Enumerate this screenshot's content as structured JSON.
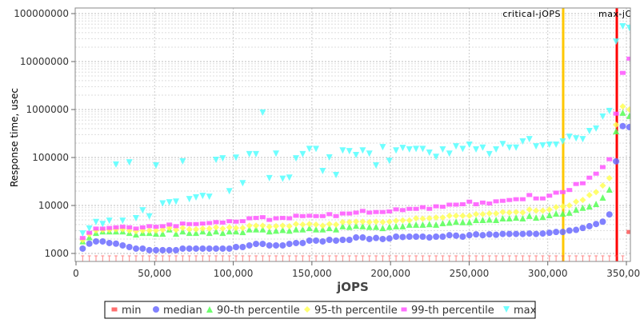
{
  "chart_data": {
    "type": "scatter",
    "title": "",
    "xlabel": "jOPS",
    "ylabel": "Response time, usec",
    "yscale": "log",
    "xlim": [
      0,
      352000
    ],
    "ylim": [
      1000,
      100000000
    ],
    "grid": true,
    "legend_position": "bottom",
    "x_ticks": [
      "0",
      "50,000",
      "100,000",
      "150,000",
      "200,000",
      "250,000",
      "300,000",
      "350,000"
    ],
    "x_tick_values": [
      0,
      50000,
      100000,
      150000,
      200000,
      250000,
      300000,
      350000
    ],
    "y_ticks": [
      "1000",
      "10000",
      "100000",
      "1000000",
      "10000000",
      "100000000"
    ],
    "y_tick_values": [
      1000,
      10000,
      100000,
      1000000,
      10000000,
      100000000
    ],
    "x_start": 4240,
    "x_step": 4240,
    "markers": [
      {
        "label": "critical-jOPS",
        "value": 309800,
        "color": "#ffc800"
      },
      {
        "label": "max-jOPS",
        "value": 343900,
        "color": "#ff0000"
      }
    ],
    "series": [
      {
        "name": "min",
        "color": "#ff5555",
        "shape": "square",
        "values": [
          900,
          900,
          900,
          900,
          900,
          900,
          900,
          900,
          900,
          900,
          900,
          900,
          900,
          900,
          900,
          900,
          900,
          900,
          900,
          900,
          900,
          900,
          900,
          900,
          900,
          900,
          900,
          900,
          900,
          900,
          900,
          900,
          900,
          900,
          900,
          900,
          900,
          900,
          900,
          900,
          900,
          900,
          900,
          900,
          900,
          900,
          900,
          900,
          900,
          900,
          900,
          900,
          900,
          900,
          900,
          900,
          900,
          900,
          900,
          900,
          900,
          900,
          900,
          900,
          900,
          900,
          900,
          900,
          900,
          900,
          900,
          900,
          900,
          900,
          900,
          900,
          900,
          900,
          900,
          900,
          900,
          900,
          2800
        ]
      },
      {
        "name": "median",
        "color": "#6b6bff",
        "shape": "circle",
        "values": [
          1260,
          1600,
          1780,
          1780,
          1650,
          1600,
          1470,
          1360,
          1260,
          1260,
          1170,
          1170,
          1170,
          1170,
          1170,
          1260,
          1260,
          1260,
          1260,
          1260,
          1260,
          1260,
          1260,
          1360,
          1360,
          1470,
          1580,
          1580,
          1470,
          1470,
          1470,
          1580,
          1650,
          1650,
          1850,
          1850,
          1780,
          1920,
          1850,
          1920,
          1920,
          2150,
          2150,
          2000,
          2100,
          2000,
          2050,
          2240,
          2200,
          2240,
          2240,
          2240,
          2150,
          2240,
          2240,
          2400,
          2350,
          2240,
          2400,
          2500,
          2400,
          2500,
          2450,
          2550,
          2550,
          2550,
          2550,
          2600,
          2550,
          2600,
          2700,
          2800,
          2800,
          3000,
          3100,
          3400,
          3700,
          4100,
          4600,
          6500,
          83000,
          450000,
          430000
        ]
      },
      {
        "name": "90-th percentile",
        "color": "#55ff55",
        "shape": "triangle-up",
        "values": [
          1800,
          2200,
          2700,
          2900,
          2900,
          2900,
          2900,
          2700,
          2500,
          2700,
          2700,
          2600,
          2600,
          3200,
          2600,
          2900,
          2700,
          2700,
          2900,
          2700,
          2900,
          2700,
          2900,
          2900,
          2800,
          3200,
          3200,
          3200,
          2900,
          3000,
          3100,
          3000,
          3200,
          3200,
          3400,
          3200,
          3200,
          3400,
          3200,
          3700,
          3600,
          3800,
          3700,
          3600,
          3600,
          3400,
          3600,
          3700,
          3700,
          4000,
          4000,
          4000,
          4100,
          4000,
          4300,
          4400,
          4600,
          4500,
          4500,
          5000,
          5000,
          5100,
          5000,
          5400,
          5400,
          5600,
          5400,
          6100,
          5600,
          5800,
          6300,
          6800,
          6800,
          7100,
          8200,
          9000,
          9600,
          10800,
          14700,
          21500,
          354000,
          860000,
          740000
        ]
      },
      {
        "name": "95-th percentile",
        "color": "#ffff55",
        "shape": "diamond",
        "values": [
          1900,
          2500,
          3000,
          3100,
          3100,
          3200,
          3200,
          3000,
          2900,
          3000,
          3000,
          3000,
          3100,
          3400,
          3100,
          3400,
          3200,
          3200,
          3300,
          3300,
          3500,
          3300,
          3500,
          3400,
          3400,
          3800,
          3800,
          3800,
          3600,
          3700,
          3800,
          3700,
          4100,
          4000,
          4100,
          4000,
          3800,
          4100,
          4000,
          4500,
          4500,
          4600,
          4600,
          4500,
          4600,
          4500,
          4600,
          4800,
          4900,
          4900,
          5400,
          5300,
          5400,
          5600,
          5600,
          6100,
          6100,
          6100,
          6100,
          6600,
          6600,
          6800,
          6800,
          7300,
          7100,
          7300,
          7100,
          8200,
          7800,
          7800,
          8200,
          9200,
          9600,
          10000,
          12000,
          13000,
          16500,
          19000,
          26000,
          37000,
          480000,
          1160000,
          1000000
        ]
      },
      {
        "name": "99-th percentile",
        "color": "#ff55ff",
        "shape": "square",
        "values": [
          2100,
          2700,
          3300,
          3300,
          3400,
          3500,
          3600,
          3500,
          3300,
          3500,
          3700,
          3600,
          3700,
          4000,
          3700,
          4200,
          4100,
          4100,
          4200,
          4300,
          4500,
          4400,
          4700,
          4600,
          4700,
          5400,
          5500,
          5700,
          5000,
          5400,
          5500,
          5400,
          6100,
          6000,
          6100,
          6000,
          6000,
          6600,
          6000,
          6800,
          6800,
          7100,
          7700,
          7100,
          7300,
          7300,
          7500,
          8300,
          8000,
          8500,
          8500,
          9200,
          8500,
          9600,
          9400,
          10400,
          10400,
          10600,
          12000,
          10600,
          11500,
          11000,
          12200,
          12500,
          13000,
          13500,
          13500,
          16500,
          14000,
          14000,
          16000,
          18500,
          19000,
          21000,
          28000,
          29000,
          38000,
          46000,
          63000,
          92000,
          820000,
          5800000,
          11500000
        ]
      },
      {
        "name": "max",
        "color": "#55ffff",
        "shape": "triangle-down",
        "values": [
          2600,
          3300,
          4500,
          4100,
          4800,
          71000,
          4800,
          79000,
          5400,
          7900,
          5900,
          68000,
          11000,
          11600,
          12000,
          83000,
          13500,
          14700,
          15800,
          15200,
          89000,
          96000,
          19800,
          99000,
          29000,
          117000,
          117000,
          860000,
          37000,
          120000,
          36000,
          38000,
          96000,
          117000,
          150000,
          150000,
          52000,
          100000,
          43000,
          140000,
          135000,
          112000,
          140000,
          120000,
          68000,
          164000,
          85000,
          140000,
          158000,
          147000,
          150000,
          150000,
          126000,
          103000,
          147000,
          120000,
          170000,
          150000,
          185000,
          147000,
          160000,
          117000,
          147000,
          190000,
          160000,
          160000,
          215000,
          240000,
          170000,
          178000,
          185000,
          185000,
          215000,
          270000,
          250000,
          240000,
          355000,
          400000,
          710000,
          930000,
          26000000,
          54000000,
          50000000
        ]
      }
    ]
  }
}
